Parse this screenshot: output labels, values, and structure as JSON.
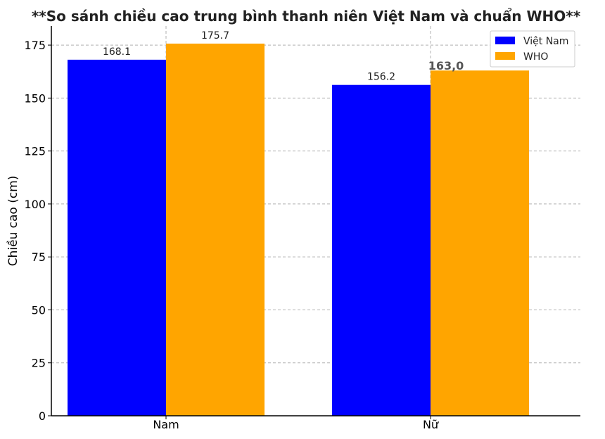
{
  "chart_data": {
    "type": "bar",
    "title": "**So sánh chiều cao trung bình thanh niên Việt Nam và chuẩn WHO**",
    "xlabel": "",
    "ylabel": "Chiều cao (cm)",
    "categories": [
      "Nam",
      "Nữ"
    ],
    "series": [
      {
        "name": "Việt Nam",
        "values": [
          168.1,
          156.2
        ],
        "labels": [
          "168.1",
          "156.2"
        ],
        "color": "#0000ff"
      },
      {
        "name": "WHO",
        "values": [
          175.7,
          163.0
        ],
        "labels": [
          "175.7",
          "163,0"
        ],
        "color": "#ffa500"
      }
    ],
    "ylim": [
      0,
      184
    ],
    "yticks": [
      0,
      25,
      50,
      75,
      100,
      125,
      150,
      175
    ],
    "grid": true,
    "legend_position": "top-right"
  }
}
